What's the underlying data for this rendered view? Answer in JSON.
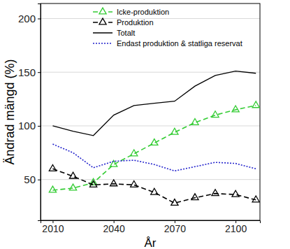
{
  "chart_data": {
    "type": "line",
    "x_label": "År",
    "y_label": "Ändrad mängd (%)",
    "x": [
      2010,
      2020,
      2030,
      2040,
      2050,
      2060,
      2070,
      2080,
      2090,
      2100,
      2110
    ],
    "xlim": [
      2004,
      2112
    ],
    "xticks": [
      2010,
      2040,
      2070,
      2100
    ],
    "ylim": [
      12,
      214
    ],
    "yticks": [
      50,
      100,
      150,
      200
    ],
    "grid": true,
    "legend": "top",
    "series": [
      {
        "name": "Icke-produktion",
        "color": "#33cc33",
        "marker": "triangle",
        "line_style": "dashed",
        "values": [
          40,
          42,
          47,
          64,
          74,
          84,
          94,
          103,
          110,
          115,
          119
        ]
      },
      {
        "name": "Produktion",
        "color": "#000000",
        "marker": "triangle",
        "line_style": "dashed",
        "values": [
          60,
          53,
          45,
          46,
          45,
          38,
          28,
          33,
          37,
          36,
          31
        ]
      },
      {
        "name": "Totalt",
        "color": "#000000",
        "marker": "none",
        "line_style": "solid",
        "values": [
          100,
          95,
          91,
          110,
          119,
          121,
          123,
          137,
          147,
          151,
          149
        ]
      },
      {
        "name": "Endast produktion & statliga reservat",
        "color": "#2222cc",
        "marker": "none",
        "line_style": "dotted",
        "values": [
          83,
          75,
          61,
          67,
          68,
          64,
          58,
          62,
          66,
          65,
          60
        ]
      }
    ]
  }
}
